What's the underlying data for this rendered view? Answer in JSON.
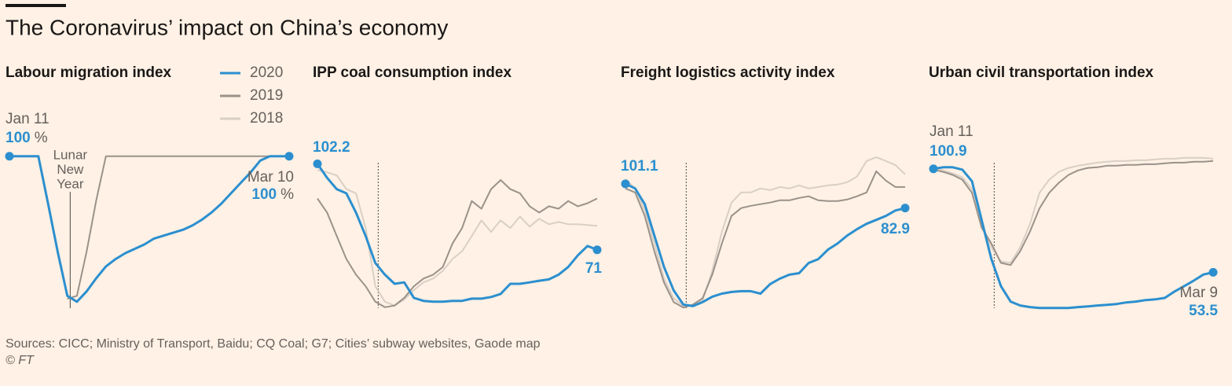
{
  "title": "The Coronavirus’ impact on China’s economy",
  "sources": "Sources: CICC; Ministry of Transport, Baidu; CQ Coal; G7; Cities’ subway websites, Gaode map",
  "credit": "© FT",
  "chart_data": [
    {
      "type": "line",
      "title": "Labour migration index",
      "ylim": [
        -5,
        102
      ],
      "start_date": "Jan 11",
      "end_date": "Mar 10",
      "unit": "%",
      "event": {
        "label": [
          "Lunar",
          "New",
          "Year"
        ],
        "x": 6.3
      },
      "series": [
        {
          "name": "2020",
          "color": "#2b8fcf",
          "values": [
            100,
            100,
            100,
            100,
            68,
            35,
            5,
            1,
            8,
            17,
            25,
            30,
            34,
            37,
            40,
            44,
            46,
            48,
            50,
            53,
            57,
            62,
            68,
            75,
            82,
            89,
            97,
            100,
            100,
            100
          ]
        },
        {
          "name": "2019",
          "color": "#9a928a",
          "values": [
            null,
            null,
            null,
            null,
            null,
            null,
            3,
            5,
            35,
            70,
            100,
            100,
            100,
            100,
            100,
            100,
            100,
            100,
            100,
            100,
            100,
            100,
            100,
            100,
            100,
            100,
            100,
            100,
            100,
            100
          ]
        },
        {
          "name": "2018",
          "color": "#d9cfc5",
          "values": [
            null,
            null,
            null,
            null,
            null,
            null,
            null,
            null,
            null,
            null,
            null,
            null,
            null,
            null,
            null,
            null,
            null,
            null,
            null,
            null,
            null,
            null,
            null,
            null,
            null,
            null,
            null,
            null,
            null,
            null
          ]
        }
      ]
    },
    {
      "type": "line",
      "title": "IPP coal consumption index",
      "ylim": [
        49,
        106
      ],
      "event": {
        "x": 6.3
      },
      "series": [
        {
          "color": "#2b8fcf",
          "values": [
            102.2,
            97.1,
            93,
            91.5,
            84.5,
            76,
            66.2,
            62,
            58.7,
            59.2,
            53.6,
            52.5,
            52.2,
            52.2,
            52.5,
            52.5,
            53.3,
            53.3,
            53.9,
            55,
            58.7,
            58.7,
            59.2,
            59.8,
            60.3,
            62,
            64.8,
            69,
            72.4,
            71
          ]
        },
        {
          "color": "#9a928a",
          "values": [
            89.6,
            84.5,
            76,
            67.7,
            62,
            57.8,
            52.2,
            50.2,
            50.8,
            53.6,
            57.8,
            60.6,
            62,
            64.8,
            73.3,
            78.9,
            88.7,
            85.9,
            93,
            96.3,
            93,
            91.5,
            86.8,
            84.5,
            86.8,
            85.9,
            88.7,
            86.8,
            87.9,
            89.6
          ]
        },
        {
          "color": "#d9cfc5",
          "values": [
            100,
            99.1,
            98,
            93,
            91.5,
            78.9,
            57.8,
            52.2,
            50.8,
            53,
            56.4,
            59.2,
            60.6,
            63.4,
            67.7,
            70.5,
            76,
            81.7,
            77.5,
            81.7,
            78.9,
            83.1,
            79.4,
            82.3,
            80.3,
            81.1,
            80.3,
            80.3,
            80,
            79.7
          ]
        }
      ]
    },
    {
      "type": "line",
      "title": "Freight logistics activity index",
      "ylim": [
        6,
        124
      ],
      "event": {
        "x": 6.3
      },
      "series": [
        {
          "color": "#2b8fcf",
          "values": [
            101.1,
            97.6,
            85.8,
            62.3,
            38.7,
            21.1,
            10.5,
            9.3,
            12.3,
            16.4,
            18.7,
            19.9,
            20.5,
            20.5,
            18.7,
            25.8,
            29.9,
            32.9,
            34,
            41.7,
            44.6,
            51.7,
            56.4,
            62.3,
            67,
            71.1,
            74,
            77,
            81.1,
            82.9
          ]
        },
        {
          "color": "#9a928a",
          "values": [
            97.6,
            94.6,
            77,
            50.5,
            27,
            12.3,
            8.2,
            10.5,
            15.2,
            32.9,
            56.4,
            77,
            82.9,
            84.6,
            85.8,
            87,
            88.7,
            88.7,
            90.5,
            91.7,
            88.7,
            88.2,
            88.2,
            89.3,
            91.7,
            94.6,
            110.5,
            103.5,
            98.7,
            98.7
          ]
        },
        {
          "color": "#d9cfc5",
          "values": [
            104.6,
            97.6,
            81.1,
            56.4,
            29.9,
            15.2,
            9.3,
            9.9,
            13.5,
            35.8,
            65.2,
            87,
            94.6,
            94.6,
            97.6,
            96.4,
            98.7,
            97.6,
            99.9,
            97.6,
            98.7,
            99.9,
            100.5,
            102.3,
            106.4,
            118.2,
            121.1,
            118.2,
            115.2,
            108.2
          ]
        }
      ]
    },
    {
      "type": "line",
      "title": "Urban civil transportation index",
      "ylim": [
        36,
        108
      ],
      "start_date": "Jan 11",
      "end_date": "Mar 9",
      "event": {
        "x": 6.3
      },
      "series": [
        {
          "color": "#2b8fcf",
          "values": [
            100.9,
            101.6,
            101.6,
            100.5,
            95.2,
            77.4,
            59.6,
            47.2,
            40.1,
            38.3,
            37.6,
            37.2,
            37.2,
            37.2,
            37.2,
            37.6,
            37.9,
            38.3,
            38.6,
            39,
            39.7,
            40.1,
            40.8,
            41.1,
            41.8,
            44.7,
            47.2,
            49.7,
            52.5,
            53.5
          ]
        },
        {
          "color": "#9a928a",
          "values": [
            100.5,
            99.5,
            98.1,
            95.9,
            89.9,
            73.9,
            66.7,
            57.8,
            56.8,
            63.2,
            72.1,
            82.8,
            89.9,
            94.5,
            98.1,
            100.2,
            101.3,
            101.6,
            102.3,
            102.3,
            102.7,
            102.7,
            103,
            103,
            103.4,
            103.7,
            103.7,
            104.1,
            104.1,
            104.5
          ]
        },
        {
          "color": "#d9cfc5",
          "values": [
            101.6,
            100.2,
            98.8,
            97,
            91.6,
            75.6,
            65,
            58.5,
            57.8,
            65,
            75.6,
            89.9,
            95.9,
            99.5,
            101.3,
            102.3,
            103,
            103.7,
            104.1,
            104.5,
            104.5,
            104.8,
            104.8,
            105.2,
            105.5,
            105.5,
            105.9,
            105.9,
            105.9,
            105.5
          ]
        }
      ]
    }
  ]
}
